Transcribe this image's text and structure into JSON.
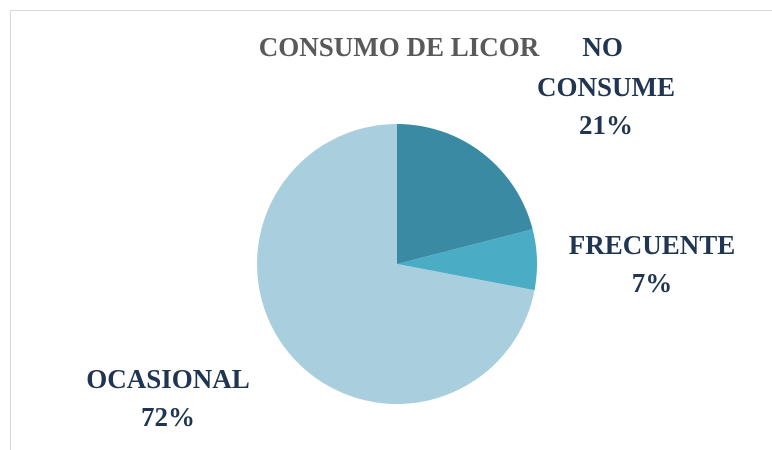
{
  "chart_data": {
    "type": "pie",
    "title": "CONSUMO DE LICOR",
    "categories": [
      "NO CONSUME",
      "FRECUENTE",
      "OCASIONAL"
    ],
    "values": [
      21,
      7,
      72
    ],
    "value_labels": [
      "21%",
      "7%",
      "72%"
    ],
    "colors": [
      "#3a8aa3",
      "#4bacc6",
      "#a9cfde"
    ]
  }
}
